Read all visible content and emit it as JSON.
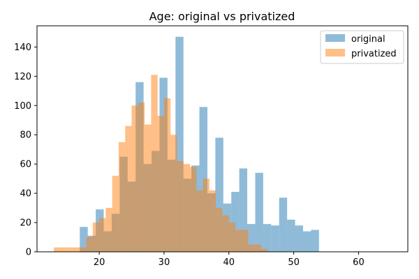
{
  "chart_data": {
    "type": "bar",
    "title": "Age: original vs privatized",
    "xlabel": "",
    "ylabel": "",
    "xlim": [
      10.4,
      67.6
    ],
    "ylim": [
      0,
      154.5
    ],
    "xticks": [
      20,
      30,
      40,
      50,
      60
    ],
    "yticks": [
      0,
      20,
      40,
      60,
      80,
      100,
      120,
      140
    ],
    "legend_position": "top-right",
    "series": [
      {
        "name": "original",
        "color": "#1f77b4",
        "alpha": 0.5,
        "bin_start": 17.0,
        "bin_width": 1.23,
        "values": [
          17,
          11,
          29,
          14,
          26,
          65,
          48,
          116,
          60,
          69,
          119,
          63,
          147,
          50,
          59,
          99,
          40,
          78,
          33,
          41,
          57,
          19,
          54,
          19,
          18,
          37,
          22,
          18,
          14,
          15
        ]
      },
      {
        "name": "privatized",
        "color": "#ff7f0e",
        "alpha": 0.5,
        "bin_start": 13.0,
        "bin_width": 1.0,
        "values": [
          3,
          3,
          3,
          3,
          3,
          10,
          20,
          23,
          30,
          52,
          75,
          86,
          100,
          102,
          87,
          121,
          93,
          105,
          80,
          62,
          60,
          58,
          42,
          50,
          42,
          30,
          25,
          20,
          15,
          15,
          5,
          5,
          2
        ]
      }
    ]
  }
}
